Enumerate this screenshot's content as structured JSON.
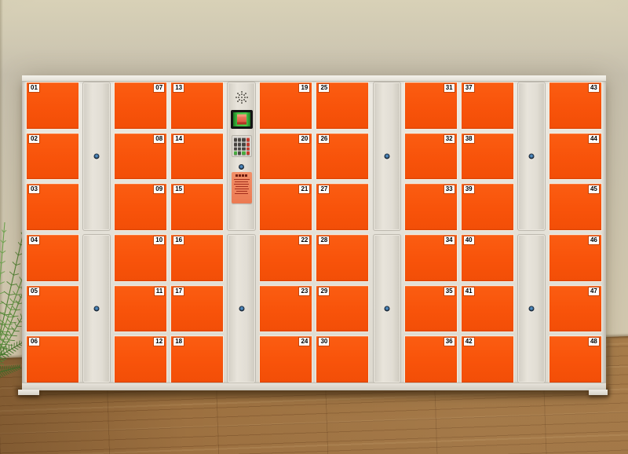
{
  "scene": {
    "wall_color": "#cdc5b0",
    "floor_color": "#a87a46",
    "plant": "palm-plant"
  },
  "cabinet": {
    "type": "electronic-storage-locker",
    "frame_color": "#dedad1",
    "door_color": "#f8530a",
    "badge_bg_color": "#ffffff",
    "badge_text_color": "#000000",
    "columns": [
      {
        "type": "doors",
        "badge_side": "left",
        "doors": [
          "01",
          "02",
          "03",
          "04",
          "05",
          "06"
        ]
      },
      {
        "type": "panel",
        "keyholes": 2
      },
      {
        "type": "doors",
        "badge_side": "right",
        "doors": [
          "07",
          "08",
          "09",
          "10",
          "11",
          "12"
        ]
      },
      {
        "type": "doors",
        "badge_side": "left",
        "doors": [
          "13",
          "14",
          "15",
          "16",
          "17",
          "18"
        ]
      },
      {
        "type": "control"
      },
      {
        "type": "doors",
        "badge_side": "right",
        "doors": [
          "19",
          "20",
          "21",
          "22",
          "23",
          "24"
        ]
      },
      {
        "type": "doors",
        "badge_side": "left",
        "doors": [
          "25",
          "26",
          "27",
          "28",
          "29",
          "30"
        ]
      },
      {
        "type": "panel",
        "keyholes": 2
      },
      {
        "type": "doors",
        "badge_side": "right",
        "doors": [
          "31",
          "32",
          "33",
          "34",
          "35",
          "36"
        ]
      },
      {
        "type": "doors",
        "badge_side": "left",
        "doors": [
          "37",
          "38",
          "39",
          "40",
          "41",
          "42"
        ]
      },
      {
        "type": "panel",
        "keyholes": 2
      },
      {
        "type": "doors",
        "badge_side": "right",
        "doors": [
          "43",
          "44",
          "45",
          "46",
          "47",
          "48"
        ]
      }
    ],
    "control": {
      "speaker": "speaker-grille",
      "screen": {
        "bezel_color": "#141414",
        "display_color": "#3fc244",
        "glyph_color": "#e2604a"
      },
      "keypad": {
        "layout": [
          [
            "dark",
            "dark",
            "dark",
            "red"
          ],
          [
            "dark",
            "dark",
            "dark",
            "red"
          ],
          [
            "dark",
            "dark",
            "dark",
            "red"
          ],
          [
            "green",
            "dark",
            "green",
            "red"
          ]
        ],
        "colors": {
          "dark": "#474440",
          "red": "#c43a2c",
          "green": "#47a93f"
        }
      },
      "sticker": {
        "bg_color": "#ee8259",
        "title_glyphs": 4,
        "text_lines": 7
      },
      "keyholes": 2
    }
  }
}
